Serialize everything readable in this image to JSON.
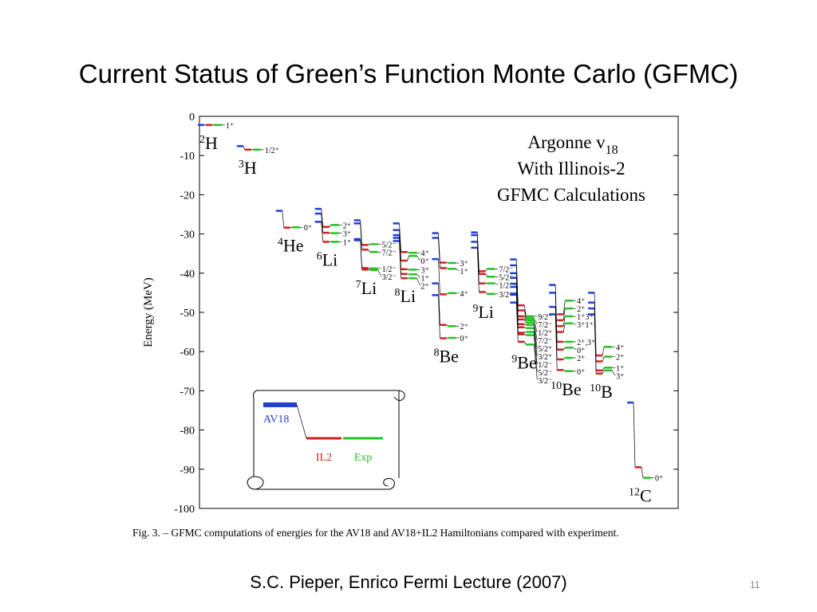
{
  "slide": {
    "title": "Current Status of Green’s Function Monte Carlo (GFMC)",
    "footer": "S.C. Pieper, Enrico Fermi Lecture (2007)",
    "page": "11"
  },
  "chart_data": {
    "type": "levels",
    "ylabel": "Energy (MeV)",
    "ylim": [
      -100,
      0
    ],
    "yticks": [
      0,
      -10,
      -20,
      -30,
      -40,
      -50,
      -60,
      -70,
      -80,
      -90,
      -100
    ],
    "annotation": [
      "Argonne v",
      "With Illinois-2",
      "GFMC Calculations"
    ],
    "annotation_sub": "18",
    "caption": "Fig. 3. – GFMC computations of energies for the AV18 and AV18+IL2 Hamiltonians compared with experiment.",
    "series": [
      {
        "name": "AV18",
        "color": "#1f3fd6"
      },
      {
        "name": "IL2",
        "color": "#d42020"
      },
      {
        "name": "Exp",
        "color": "#22c322"
      }
    ],
    "nuclei": [
      {
        "mass": "2",
        "symbol": "H",
        "states": [
          {
            "label": "1⁺",
            "values": [
              -2.2,
              -2.2,
              -2.2
            ]
          }
        ]
      },
      {
        "mass": "3",
        "symbol": "H",
        "states": [
          {
            "label": "1/2⁺",
            "values": [
              -7.6,
              -8.5,
              -8.5
            ]
          }
        ]
      },
      {
        "mass": "4",
        "symbol": "He",
        "states": [
          {
            "label": "0⁺",
            "values": [
              -24.1,
              -28.4,
              -28.3
            ]
          }
        ]
      },
      {
        "mass": "6",
        "symbol": "Li",
        "states": [
          {
            "label": "2⁺",
            "values": [
              -23.6,
              -28.2,
              -27.7
            ]
          },
          {
            "label": "3⁺",
            "values": [
              -24.8,
              -29.7,
              -29.8
            ]
          },
          {
            "label": "1⁺",
            "values": [
              -26.9,
              -32.0,
              -32.0
            ]
          }
        ]
      },
      {
        "mass": "7",
        "symbol": "Li",
        "states": [
          {
            "label": "5/2⁻",
            "values": [
              -26.5,
              -32.8,
              -32.6
            ]
          },
          {
            "label": "7/2⁻",
            "values": [
              -27.3,
              -34.0,
              -34.6
            ]
          },
          {
            "label": "1/2⁻",
            "values": [
              -31.3,
              -38.7,
              -38.8
            ]
          },
          {
            "label": "3/2⁻",
            "values": [
              -31.6,
              -39.1,
              -39.2
            ]
          }
        ]
      },
      {
        "mass": "8",
        "symbol": "Li",
        "states": [
          {
            "label": "4⁺",
            "values": [
              -27.3,
              -34.6,
              -34.8
            ]
          },
          {
            "label": "0⁺",
            "values": [
              -29.0,
              -36.8,
              -35.6
            ]
          },
          {
            "label": "3⁺",
            "values": [
              -30.3,
              -39.0,
              -39.1
            ]
          },
          {
            "label": "1⁺",
            "values": [
              -31.0,
              -40.2,
              -40.3
            ]
          },
          {
            "label": "2⁺",
            "values": [
              -31.8,
              -41.3,
              -41.3
            ]
          }
        ]
      },
      {
        "mass": "8",
        "symbol": "Be",
        "states": [
          {
            "label": "3⁺",
            "values": [
              -29.8,
              -37.3,
              -37.4
            ]
          },
          {
            "label": "1⁺",
            "values": [
              -31.0,
              -38.7,
              -38.9
            ]
          },
          {
            "label": "4⁺",
            "values": [
              -36.4,
              -45.4,
              -45.1
            ]
          },
          {
            "label": "2⁺",
            "values": [
              -42.6,
              -53.2,
              -53.5
            ]
          },
          {
            "label": "0⁺",
            "values": [
              -45.6,
              -56.6,
              -56.5
            ]
          }
        ]
      },
      {
        "mass": "9",
        "symbol": "Li",
        "states": [
          {
            "label": "7/2⁻",
            "values": [
              -29.6,
              -39.5,
              -38.9
            ]
          },
          {
            "label": "5/2⁻",
            "values": [
              -30.3,
              -40.2,
              -40.9
            ]
          },
          {
            "label": "1/2⁻",
            "values": [
              -32.0,
              -42.6,
              -42.6
            ]
          },
          {
            "label": "3/2⁻",
            "values": [
              -33.5,
              -44.8,
              -45.3
            ]
          }
        ]
      },
      {
        "mass": "9",
        "symbol": "Be",
        "states": [
          {
            "label": "9/2⁻",
            "values": [
              -36.5,
              -48.2,
              -51.0
            ]
          },
          {
            "label": "7/2⁻",
            "values": [
              -38.0,
              -49.5,
              -51.5
            ]
          },
          {
            "label": "1/2⁺",
            "values": [
              -40.0,
              -51.0,
              -52.0
            ]
          },
          {
            "label": "7/2⁻",
            "values": [
              -41.2,
              -51.8,
              -52.6
            ]
          },
          {
            "label": "5/2⁺",
            "values": [
              -42.7,
              -53.0,
              -53.2
            ]
          },
          {
            "label": "3/2⁺",
            "values": [
              -43.5,
              -53.8,
              -54.0
            ]
          },
          {
            "label": "1/2⁻",
            "values": [
              -45.5,
              -55.2,
              -55.0
            ]
          },
          {
            "label": "5/2⁻",
            "values": [
              -45.2,
              -55.6,
              -55.8
            ]
          },
          {
            "label": "3/2⁻",
            "values": [
              -47.5,
              -57.5,
              -58.2
            ]
          }
        ]
      },
      {
        "mass": "10",
        "symbol": "Be",
        "states": [
          {
            "label": "4⁺",
            "values": [
              null,
              -50.5,
              -47.0
            ]
          },
          {
            "label": "2⁺",
            "values": [
              null,
              -52.0,
              -49.0
            ]
          },
          {
            "label": "1⁺3⁺",
            "values": [
              null,
              -53.5,
              -51.0
            ]
          },
          {
            "label": "3⁺1⁺",
            "values": [
              null,
              -55.0,
              -52.8
            ]
          },
          {
            "label": "2⁺,3⁺",
            "values": [
              -43.0,
              -57.5,
              -57.5
            ]
          },
          {
            "label": "0⁺",
            "values": [
              -45.0,
              -59.5,
              -59.0
            ]
          },
          {
            "label": "2⁺",
            "values": [
              -48.6,
              -62.0,
              -61.6
            ]
          },
          {
            "label": "0⁺",
            "values": [
              -50.5,
              -64.7,
              -65.0
            ]
          }
        ]
      },
      {
        "mass": "10",
        "symbol": "B",
        "states": [
          {
            "label": "4⁺",
            "values": [
              -45.0,
              -61.0,
              -58.8
            ]
          },
          {
            "label": "2⁺",
            "values": [
              -47.5,
              -62.5,
              -61.3
            ]
          },
          {
            "label": "1⁺",
            "values": [
              -49.0,
              -64.8,
              -64.1
            ]
          },
          {
            "label": "3⁺",
            "values": [
              -50.5,
              -65.6,
              -64.8
            ]
          }
        ]
      },
      {
        "mass": "12",
        "symbol": "C",
        "states": [
          {
            "label": "0⁺",
            "values": [
              -73.0,
              -89.5,
              -92.2
            ]
          }
        ]
      }
    ]
  }
}
